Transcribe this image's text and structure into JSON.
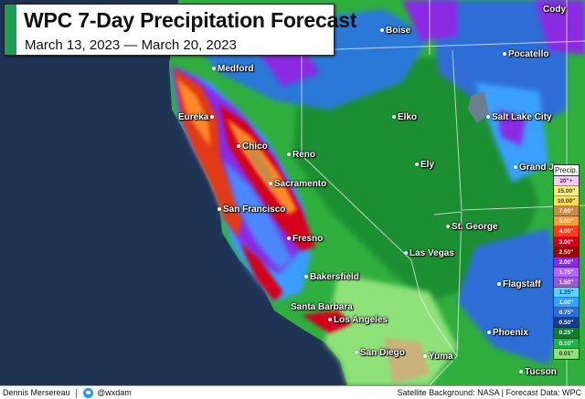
{
  "title": "WPC 7-Day Precipitation Forecast",
  "subtitle": "March 13, 2023 — March 20, 2023",
  "accent_color": "#1f9d55",
  "legend": {
    "title": "Precip.",
    "items": [
      {
        "label": "20\"+",
        "color": "#ffc8ff",
        "text_color": "#333"
      },
      {
        "label": "15.00\"",
        "color": "#fff37a",
        "text_color": "#333"
      },
      {
        "label": "10.00\"",
        "color": "#ffde5a",
        "text_color": "#333"
      },
      {
        "label": "7.00\"",
        "color": "#c88a45",
        "text_color": "#fff"
      },
      {
        "label": "5.00\"",
        "color": "#ff9a3c",
        "text_color": "#fff"
      },
      {
        "label": "4.00\"",
        "color": "#ff3b1f",
        "text_color": "#fff"
      },
      {
        "label": "3.00\"",
        "color": "#d4001a",
        "text_color": "#fff"
      },
      {
        "label": "2.50\"",
        "color": "#9e0000",
        "text_color": "#fff"
      },
      {
        "label": "2.00\"",
        "color": "#8a2be2",
        "text_color": "#fff"
      },
      {
        "label": "1.75\"",
        "color": "#b266ff",
        "text_color": "#fff"
      },
      {
        "label": "1.50\"",
        "color": "#9b59d6",
        "text_color": "#fff"
      },
      {
        "label": "1.25\"",
        "color": "#5ad2ff",
        "text_color": "#333"
      },
      {
        "label": "1.00\"",
        "color": "#3aa0ff",
        "text_color": "#fff"
      },
      {
        "label": "0.75\"",
        "color": "#2f6dd6",
        "text_color": "#fff"
      },
      {
        "label": "0.50\"",
        "color": "#173c8c",
        "text_color": "#fff"
      },
      {
        "label": "0.25\"",
        "color": "#0f7f2e",
        "text_color": "#fff"
      },
      {
        "label": "0.10\"",
        "color": "#22b24c",
        "text_color": "#fff"
      },
      {
        "label": "0.01\"",
        "color": "#8fe27a",
        "text_color": "#333"
      }
    ]
  },
  "cities": [
    {
      "name": "Cody"
    },
    {
      "name": "Boise"
    },
    {
      "name": "Pocatello"
    },
    {
      "name": "Medford"
    },
    {
      "name": "Salt Lake City"
    },
    {
      "name": "Eureka"
    },
    {
      "name": "Elko"
    },
    {
      "name": "Chico"
    },
    {
      "name": "Reno"
    },
    {
      "name": "Ely"
    },
    {
      "name": "Grand Ju"
    },
    {
      "name": "Sacramento"
    },
    {
      "name": "San Francisco"
    },
    {
      "name": "St. George"
    },
    {
      "name": "Fresno"
    },
    {
      "name": "Las Vegas"
    },
    {
      "name": "Bakersfield"
    },
    {
      "name": "Flagstaff"
    },
    {
      "name": "Santa Barbara"
    },
    {
      "name": "Los Angeles"
    },
    {
      "name": "Phoenix"
    },
    {
      "name": "San Diego"
    },
    {
      "name": "Yuma"
    },
    {
      "name": "Tucson"
    }
  ],
  "footer": {
    "author": "Dennis Mersereau",
    "handle": "@wxdam",
    "source": "Satellite Background: NASA | Forecast Data: WPC"
  }
}
